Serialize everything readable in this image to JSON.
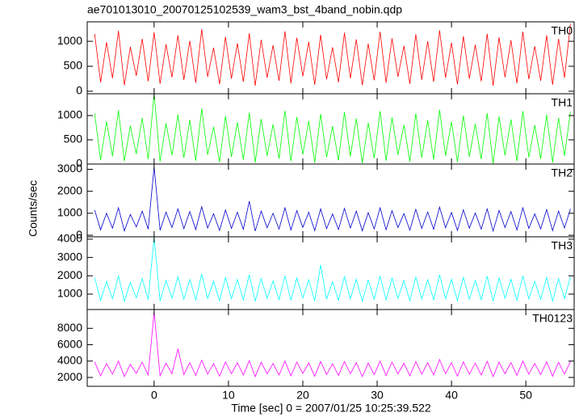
{
  "chart_data": {
    "type": "line",
    "title": "ae701013010_20070125102539_wam3_bst_4band_nobin.qdp",
    "xlabel": "Time [sec] 0 = 2007/01/25 10:25:39.522",
    "ylabel": "Counts/sec",
    "xlim": [
      -9,
      56.5
    ],
    "xticks": [
      0,
      10,
      20,
      30,
      40,
      50
    ],
    "x": [
      -8,
      -7.2,
      -6.4,
      -5.6,
      -4.8,
      -4,
      -3.2,
      -2.4,
      -1.6,
      -0.8,
      0,
      0.8,
      1.6,
      2.4,
      3.2,
      4,
      4.8,
      5.6,
      6.4,
      7.2,
      8,
      8.8,
      9.6,
      10.4,
      11.2,
      12,
      12.8,
      13.6,
      14.4,
      15.2,
      16,
      16.8,
      17.6,
      18.4,
      19.2,
      20,
      20.8,
      21.6,
      22.4,
      23.2,
      24,
      24.8,
      25.6,
      26.4,
      27.2,
      28,
      28.8,
      29.6,
      30.4,
      31.2,
      32,
      32.8,
      33.6,
      34.4,
      35.2,
      36,
      36.8,
      37.6,
      38.4,
      39.2,
      40,
      40.8,
      41.6,
      42.4,
      43.2,
      44,
      44.8,
      45.6,
      46.4,
      47.2,
      48,
      48.8,
      49.6,
      50.4,
      51.2,
      52,
      52.8,
      53.6,
      54.4,
      55.2,
      56
    ],
    "series": [
      {
        "name": "TH0",
        "color": "#ff0000",
        "ylim": [
          -50,
          1390
        ],
        "yticks": [
          0,
          500,
          1000
        ],
        "values": [
          1150,
          180,
          980,
          260,
          1210,
          120,
          890,
          310,
          1050,
          200,
          1180,
          150,
          940,
          280,
          1120,
          230,
          1010,
          170,
          1240,
          290,
          870,
          140,
          1090,
          250,
          960,
          190,
          1160,
          110,
          1030,
          270,
          920,
          210,
          1200,
          160,
          1070,
          300,
          990,
          130,
          1130,
          240,
          880,
          180,
          1170,
          260,
          1040,
          120,
          950,
          220,
          1190,
          170,
          1060,
          290,
          910,
          150,
          1140,
          230,
          1000,
          190,
          1220,
          270,
          970,
          140,
          1100,
          250,
          930,
          200,
          1150,
          110,
          1080,
          280,
          1020,
          160,
          1190,
          240,
          900,
          210,
          1120,
          130,
          1050,
          270,
          1350
        ]
      },
      {
        "name": "TH1",
        "color": "#00ff00",
        "ylim": [
          0,
          1450
        ],
        "yticks": [
          0,
          500,
          1000
        ],
        "values": [
          1050,
          80,
          880,
          160,
          1110,
          60,
          790,
          210,
          950,
          100,
          1450,
          50,
          840,
          180,
          1020,
          130,
          910,
          70,
          1140,
          190,
          770,
          40,
          990,
          150,
          860,
          90,
          1060,
          30,
          930,
          170,
          820,
          110,
          1100,
          60,
          970,
          200,
          890,
          30,
          1030,
          140,
          780,
          80,
          1070,
          160,
          940,
          20,
          850,
          120,
          1090,
          70,
          960,
          190,
          810,
          50,
          1040,
          130,
          900,
          90,
          1120,
          170,
          870,
          40,
          1000,
          150,
          830,
          100,
          1050,
          10,
          980,
          180,
          920,
          60,
          1090,
          140,
          800,
          110,
          1020,
          30,
          950,
          170,
          1080
        ]
      },
      {
        "name": "TH2",
        "color": "#0000cc",
        "ylim": [
          -70,
          3240
        ],
        "yticks": [
          0,
          1000,
          2000,
          3000
        ],
        "values": [
          1150,
          250,
          1000,
          320,
          1250,
          200,
          950,
          380,
          1100,
          280,
          3100,
          230,
          1050,
          350,
          1200,
          300,
          1080,
          260,
          1300,
          330,
          980,
          220,
          1150,
          310,
          1050,
          270,
          1550,
          190,
          1100,
          340,
          1000,
          280,
          1250,
          240,
          1120,
          360,
          1050,
          210,
          1200,
          300,
          970,
          260,
          1220,
          330,
          1100,
          200,
          1030,
          290,
          1250,
          250,
          1120,
          350,
          990,
          230,
          1180,
          310,
          1060,
          270,
          1280,
          340,
          1040,
          220,
          1160,
          320,
          1010,
          280,
          1200,
          190,
          1130,
          350,
          1080,
          240,
          1250,
          310,
          970,
          290,
          1170,
          210,
          1100,
          330,
          1200
        ]
      },
      {
        "name": "TH3",
        "color": "#00ffff",
        "ylim": [
          160,
          4130
        ],
        "yticks": [
          1000,
          2000,
          3000,
          4000
        ],
        "values": [
          1900,
          650,
          1700,
          750,
          2000,
          600,
          1650,
          800,
          1850,
          700,
          4100,
          620,
          1750,
          780,
          1950,
          720,
          1800,
          680,
          2100,
          760,
          1700,
          640,
          1900,
          740,
          1800,
          690,
          2050,
          610,
          1850,
          770,
          1720,
          700,
          2000,
          660,
          1880,
          790,
          1780,
          630,
          2600,
          720,
          1680,
          670,
          1950,
          750,
          1820,
          610,
          1760,
          710,
          2000,
          680,
          1870,
          770,
          1730,
          650,
          1930,
          740,
          1790,
          690,
          2050,
          760,
          1810,
          640,
          1910,
          730,
          1750,
          700,
          1980,
          620,
          1880,
          780,
          1820,
          660,
          2000,
          740,
          1700,
          710,
          1920,
          630,
          1850,
          760,
          1950
        ]
      },
      {
        "name": "TH0123",
        "color": "#ff00ff",
        "ylim": [
          920,
          10300
        ],
        "yticks": [
          2000,
          4000,
          6000,
          8000
        ],
        "values": [
          3900,
          2200,
          3700,
          2400,
          4000,
          2100,
          3600,
          2500,
          3850,
          2300,
          10000,
          2200,
          3750,
          2450,
          5500,
          2350,
          3800,
          2250,
          4100,
          2400,
          3700,
          2150,
          3900,
          2450,
          3800,
          2300,
          4050,
          2100,
          3850,
          2450,
          3700,
          2300,
          4000,
          2200,
          3880,
          2500,
          3780,
          2150,
          3950,
          2350,
          3680,
          2250,
          3950,
          2450,
          3820,
          2100,
          3760,
          2350,
          4000,
          2250,
          3870,
          2450,
          3730,
          2200,
          3930,
          2400,
          3790,
          2300,
          4200,
          2450,
          3810,
          2150,
          3910,
          2400,
          3750,
          2300,
          3980,
          2100,
          3880,
          2450,
          3820,
          2250,
          4000,
          2400,
          3700,
          2350,
          3920,
          2150,
          3850,
          2400,
          3950
        ]
      }
    ]
  }
}
